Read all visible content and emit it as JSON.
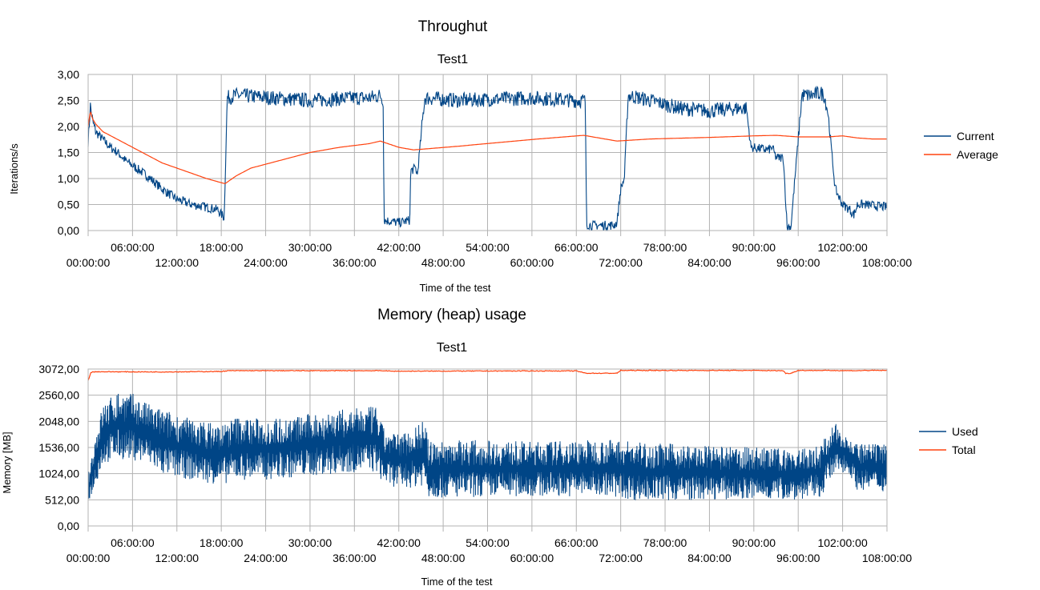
{
  "chart_data": [
    {
      "type": "line",
      "title": "Throughut",
      "subtitle": "Test1",
      "xlabel": "Time of the test",
      "ylabel": "Iterations/s",
      "xlim": [
        0,
        108
      ],
      "ylim": [
        0,
        3
      ],
      "grid": true,
      "legend_position": "right",
      "x_ticks": [
        "00:00:00",
        "06:00:00",
        "12:00:00",
        "18:00:00",
        "24:00:00",
        "30:00:00",
        "36:00:00",
        "42:00:00",
        "48:00:00",
        "54:00:00",
        "60:00:00",
        "66:00:00",
        "72:00:00",
        "78:00:00",
        "84:00:00",
        "90:00:00",
        "96:00:00",
        "102:00:00",
        "108:00:00"
      ],
      "y_ticks": [
        "0,00",
        "0,50",
        "1,00",
        "1,50",
        "2,00",
        "2,50",
        "3,00"
      ],
      "series": [
        {
          "name": "Current",
          "color": "#004586",
          "noise": 0.09,
          "x": [
            0,
            0.3,
            0.6,
            1,
            2,
            3,
            4,
            5,
            6,
            7,
            8,
            10,
            12,
            14,
            16,
            17.5,
            18.4,
            18.8,
            20,
            30,
            36,
            38,
            39.5,
            39.9,
            40,
            42,
            43.5,
            43.6,
            44.3,
            44.5,
            45.5,
            50,
            60,
            66,
            67.2,
            67.4,
            68,
            71,
            71.5,
            72,
            72.5,
            73,
            76,
            80,
            84,
            88,
            89,
            89.6,
            92,
            92.5,
            93,
            94,
            94.5,
            94.8,
            95,
            96.5,
            98,
            99,
            99.5,
            100,
            101,
            102,
            103,
            103.5,
            103.8,
            104,
            105,
            108
          ],
          "y": [
            1.7,
            2.4,
            2.1,
            1.9,
            1.75,
            1.6,
            1.5,
            1.35,
            1.25,
            1.15,
            1.05,
            0.8,
            0.6,
            0.5,
            0.45,
            0.4,
            0.25,
            2.55,
            2.6,
            2.5,
            2.55,
            2.55,
            2.6,
            2.5,
            0.2,
            0.15,
            0.2,
            1.15,
            1.2,
            1.05,
            2.55,
            2.5,
            2.55,
            2.5,
            2.5,
            0.12,
            0.1,
            0.1,
            0.15,
            0.8,
            1.0,
            2.6,
            2.5,
            2.35,
            2.3,
            2.35,
            2.35,
            1.6,
            1.55,
            1.6,
            1.4,
            1.4,
            0.05,
            0.1,
            0.05,
            2.6,
            2.6,
            2.65,
            2.6,
            2.3,
            0.8,
            0.5,
            0.4,
            0.3,
            0.4,
            0.5,
            0.5,
            0.45
          ]
        },
        {
          "name": "Average",
          "color": "#ff420e",
          "noise": 0,
          "x": [
            0,
            0.3,
            0.6,
            1,
            2,
            4,
            6,
            8,
            10,
            12,
            14,
            16,
            18.5,
            20,
            22,
            26,
            30,
            34,
            38,
            39.5,
            42,
            44,
            50,
            60,
            67,
            71.5,
            76,
            84,
            90,
            93,
            96,
            100,
            102,
            104,
            106,
            108
          ],
          "y": [
            2.0,
            2.3,
            2.15,
            2.05,
            1.9,
            1.75,
            1.6,
            1.45,
            1.3,
            1.2,
            1.1,
            1.0,
            0.9,
            1.05,
            1.2,
            1.35,
            1.5,
            1.6,
            1.67,
            1.72,
            1.6,
            1.55,
            1.62,
            1.75,
            1.83,
            1.72,
            1.76,
            1.79,
            1.82,
            1.83,
            1.8,
            1.8,
            1.82,
            1.78,
            1.76,
            1.76
          ]
        }
      ]
    },
    {
      "type": "line",
      "title": "Memory (heap) usage",
      "subtitle": "Test1",
      "xlabel": "Time of the test",
      "ylabel": "Memory [MB]",
      "xlim": [
        0,
        108
      ],
      "ylim": [
        0,
        3072
      ],
      "grid": true,
      "legend_position": "right",
      "x_ticks": [
        "00:00:00",
        "06:00:00",
        "12:00:00",
        "18:00:00",
        "24:00:00",
        "30:00:00",
        "36:00:00",
        "42:00:00",
        "48:00:00",
        "54:00:00",
        "60:00:00",
        "66:00:00",
        "72:00:00",
        "78:00:00",
        "84:00:00",
        "90:00:00",
        "96:00:00",
        "102:00:00",
        "108:00:00"
      ],
      "y_ticks": [
        "0,00",
        "512,00",
        "1024,00",
        "1536,00",
        "2048,00",
        "2560,00",
        "3072,00"
      ],
      "series": [
        {
          "name": "Used",
          "color": "#004586",
          "band": true,
          "x": [
            0,
            1,
            2,
            4,
            6,
            8,
            10,
            14,
            18,
            20,
            24,
            28,
            32,
            36,
            39,
            40,
            42,
            44,
            45.5,
            46,
            50,
            60,
            70,
            72,
            74,
            80,
            86,
            90,
            96,
            99,
            100,
            101,
            102,
            103,
            104,
            106,
            108
          ],
          "low": [
            450,
            800,
            1200,
            1300,
            1300,
            1200,
            1000,
            900,
            800,
            900,
            900,
            950,
            1000,
            1050,
            1050,
            800,
            750,
            750,
            800,
            550,
            550,
            580,
            580,
            550,
            500,
            500,
            520,
            500,
            520,
            550,
            800,
            1000,
            1050,
            1000,
            700,
            700,
            650
          ],
          "high": [
            1000,
            1800,
            2400,
            2650,
            2600,
            2400,
            2300,
            2100,
            2000,
            2150,
            2100,
            2150,
            2250,
            2300,
            2350,
            1900,
            1800,
            1950,
            2100,
            1650,
            1700,
            1650,
            1700,
            1700,
            1650,
            1600,
            1550,
            1550,
            1500,
            1600,
            1850,
            2000,
            1950,
            1700,
            1600,
            1600,
            1600
          ]
        },
        {
          "name": "Total",
          "color": "#ff420e",
          "band": false,
          "x": [
            0,
            0.4,
            1,
            10,
            18,
            19,
            40,
            41,
            60,
            66,
            67.3,
            71.5,
            72,
            90,
            94,
            94.3,
            95,
            96,
            100,
            104,
            105,
            108
          ],
          "y": [
            2850,
            3010,
            3020,
            3015,
            3025,
            3040,
            3040,
            3030,
            3035,
            3035,
            2990,
            2990,
            3045,
            3045,
            3040,
            2985,
            2990,
            3045,
            3045,
            3040,
            3045,
            3045
          ]
        }
      ]
    }
  ]
}
